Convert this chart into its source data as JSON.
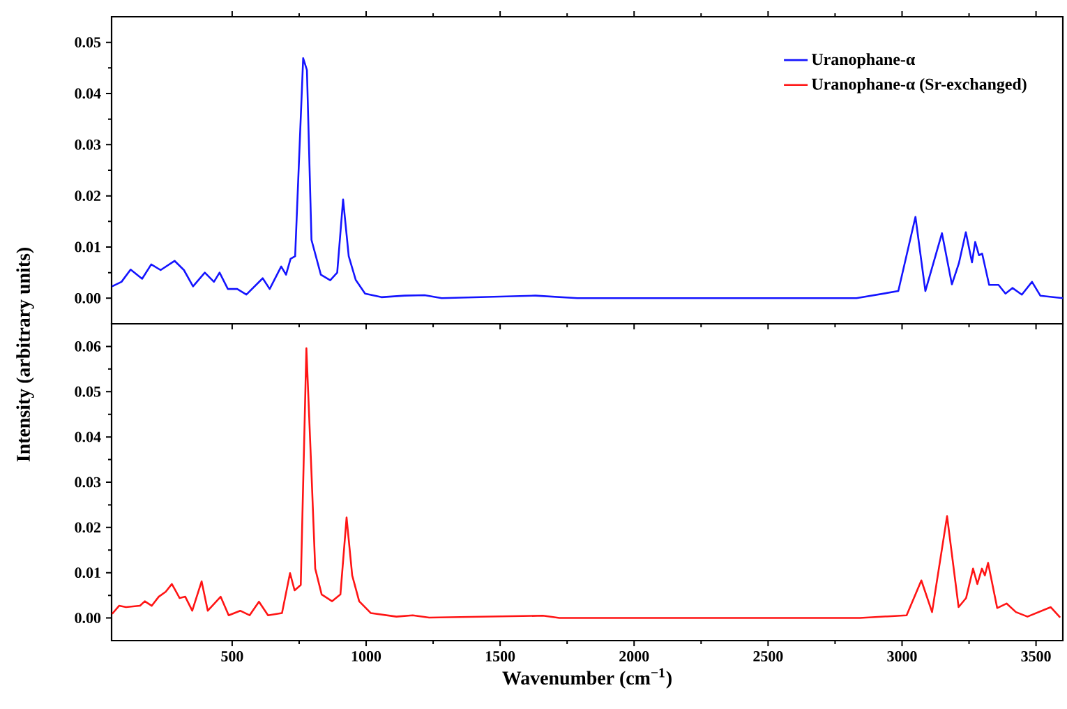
{
  "chart_data": [
    {
      "type": "line",
      "ylabel": "Intensity (arbitrary units)",
      "xlim": [
        50,
        3600
      ],
      "ylim": [
        -0.005,
        0.055
      ],
      "xticks": [
        500,
        1000,
        1500,
        2000,
        2500,
        3000,
        3500
      ],
      "yticks": [
        {
          "value": 0,
          "label": "0.00"
        },
        {
          "value": 0.01,
          "label": "0.01"
        },
        {
          "value": 0.02,
          "label": "0.02"
        },
        {
          "value": 0.03,
          "label": "0.03"
        },
        {
          "value": 0.04,
          "label": "0.04"
        },
        {
          "value": 0.05,
          "label": "0.05"
        }
      ],
      "tick_labels": "y",
      "legend": "top right",
      "marker": "none",
      "line_style": "solid",
      "grid": false,
      "series": [
        {
          "name": "Uranophane-α",
          "color": "#1414ff",
          "x": [
            52,
            87,
            121,
            164,
            198,
            233,
            285,
            320,
            354,
            398,
            432,
            453,
            484,
            519,
            553,
            614,
            640,
            683,
            701,
            718,
            735,
            765,
            779,
            796,
            831,
            866,
            892,
            914,
            935,
            961,
            996,
            1057,
            1144,
            1218,
            1282,
            1632,
            1788,
            2830,
            2986,
            3050,
            3087,
            3149,
            3186,
            3212,
            3238,
            3261,
            3273,
            3287,
            3299,
            3325,
            3360,
            3386,
            3412,
            3447,
            3485,
            3516,
            3600
          ],
          "values": [
            0.0023,
            0.0032,
            0.0056,
            0.0038,
            0.0066,
            0.0055,
            0.0073,
            0.0055,
            0.0023,
            0.005,
            0.0032,
            0.005,
            0.0018,
            0.0018,
            0.0007,
            0.0039,
            0.0018,
            0.0062,
            0.0046,
            0.0077,
            0.0082,
            0.0469,
            0.0446,
            0.0114,
            0.0046,
            0.0035,
            0.005,
            0.0193,
            0.0082,
            0.0036,
            0.0009,
            0.0002,
            0.0005,
            0.0006,
            0,
            0.0005,
            0,
            0,
            0.0014,
            0.0159,
            0.0014,
            0.0127,
            0.0027,
            0.0068,
            0.0129,
            0.007,
            0.011,
            0.0084,
            0.0087,
            0.0026,
            0.0026,
            0.0009,
            0.002,
            0.0007,
            0.0032,
            0.0005,
            0
          ]
        }
      ]
    },
    {
      "type": "line",
      "xlabel": "Wavenumber (cm$^{−1}$)",
      "xlim": [
        50,
        3600
      ],
      "ylim": [
        -0.005,
        0.065
      ],
      "xticks": [
        500,
        1000,
        1500,
        2000,
        2500,
        3000,
        3500
      ],
      "yticks": [
        {
          "value": 0,
          "label": "0.00"
        },
        {
          "value": 0.01,
          "label": "0.01"
        },
        {
          "value": 0.02,
          "label": "0.02"
        },
        {
          "value": 0.03,
          "label": "0.03"
        },
        {
          "value": 0.04,
          "label": "0.04"
        },
        {
          "value": 0.05,
          "label": "0.05"
        },
        {
          "value": 0.06,
          "label": "0.06"
        }
      ],
      "marker": "none",
      "line_style": "solid",
      "grid": false,
      "series": [
        {
          "name": "Uranophane-α  (Sr-exchanged)",
          "color": "#ff1414",
          "x": [
            52,
            78,
            104,
            156,
            174,
            200,
            226,
            252,
            275,
            304,
            325,
            351,
            386,
            409,
            457,
            487,
            530,
            565,
            600,
            634,
            686,
            716,
            733,
            756,
            777,
            796,
            810,
            834,
            873,
            904,
            927,
            948,
            974,
            1017,
            1113,
            1174,
            1235,
            1660,
            1721,
            2843,
            3017,
            3072,
            3112,
            3168,
            3211,
            3239,
            3265,
            3281,
            3298,
            3309,
            3321,
            3355,
            3390,
            3425,
            3468,
            3555,
            3590
          ],
          "values": [
            0.0009,
            0.0027,
            0.0024,
            0.0027,
            0.0037,
            0.0027,
            0.0047,
            0.0058,
            0.0075,
            0.0044,
            0.0047,
            0.0016,
            0.0081,
            0.0016,
            0.0047,
            0.0006,
            0.0016,
            0.0006,
            0.0036,
            0.0006,
            0.0011,
            0.0099,
            0.0061,
            0.0073,
            0.0596,
            0.032,
            0.0109,
            0.0052,
            0.0037,
            0.0052,
            0.0222,
            0.0094,
            0.0037,
            0.0011,
            0.0003,
            0.0006,
            0.0001,
            0.0005,
            0,
            0,
            0.0006,
            0.0083,
            0.0013,
            0.0225,
            0.0024,
            0.0044,
            0.0109,
            0.0075,
            0.0109,
            0.0094,
            0.0122,
            0.0022,
            0.0032,
            0.0013,
            0.0003,
            0.0024,
            0.0001
          ]
        }
      ]
    }
  ]
}
